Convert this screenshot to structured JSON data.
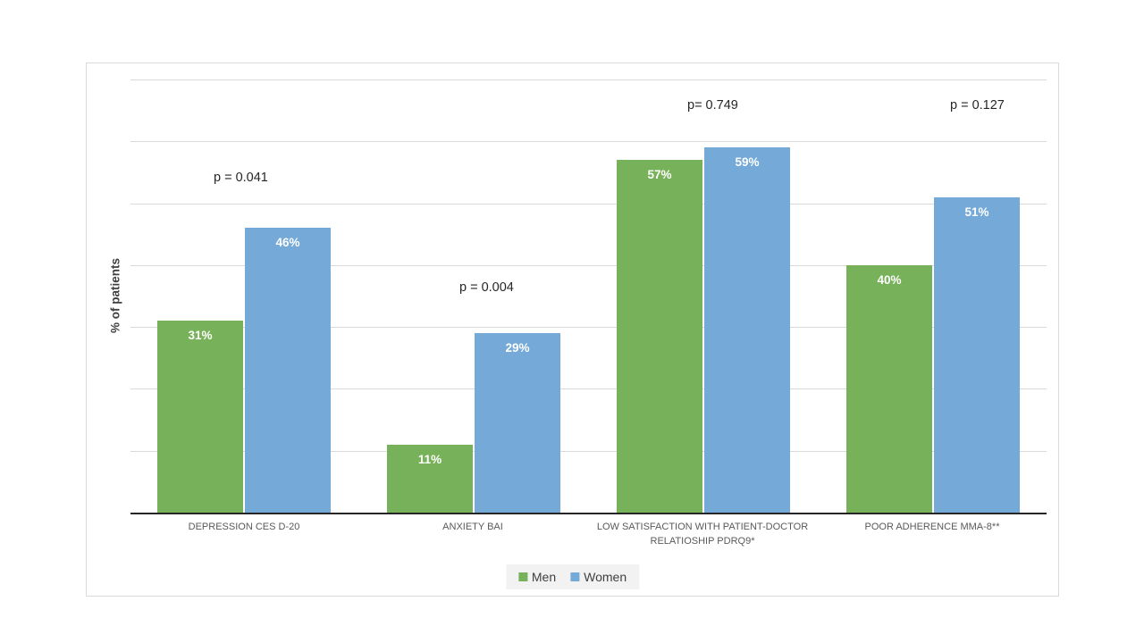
{
  "chart_data": {
    "type": "bar",
    "title": "",
    "ylabel": "% of patients",
    "ylim": [
      0,
      70
    ],
    "grid_step": 10,
    "grid": true,
    "legend_position": "bottom",
    "value_suffix": "%",
    "categories": [
      "DEPRESSION CES D-20",
      "ANXIETY BAI",
      "LOW SATISFACTION WITH PATIENT-DOCTOR RELATIOSHIP PDRQ9*",
      "POOR ADHERENCE MMA-8**"
    ],
    "p_values": [
      "p = 0.041",
      "p = 0.004",
      "p= 0.749",
      "p = 0.127"
    ],
    "series": [
      {
        "name": "Men",
        "color": "#77b159",
        "values": [
          31,
          11,
          57,
          40
        ]
      },
      {
        "name": "Women",
        "color": "#74a9d8",
        "values": [
          46,
          29,
          59,
          51
        ]
      }
    ]
  },
  "colors": {
    "gridline": "#d9d9d9",
    "axis": "#262626",
    "category_text": "#595959",
    "frame_border": "#d9d9d9",
    "legend_background": "#f2f2f2"
  }
}
